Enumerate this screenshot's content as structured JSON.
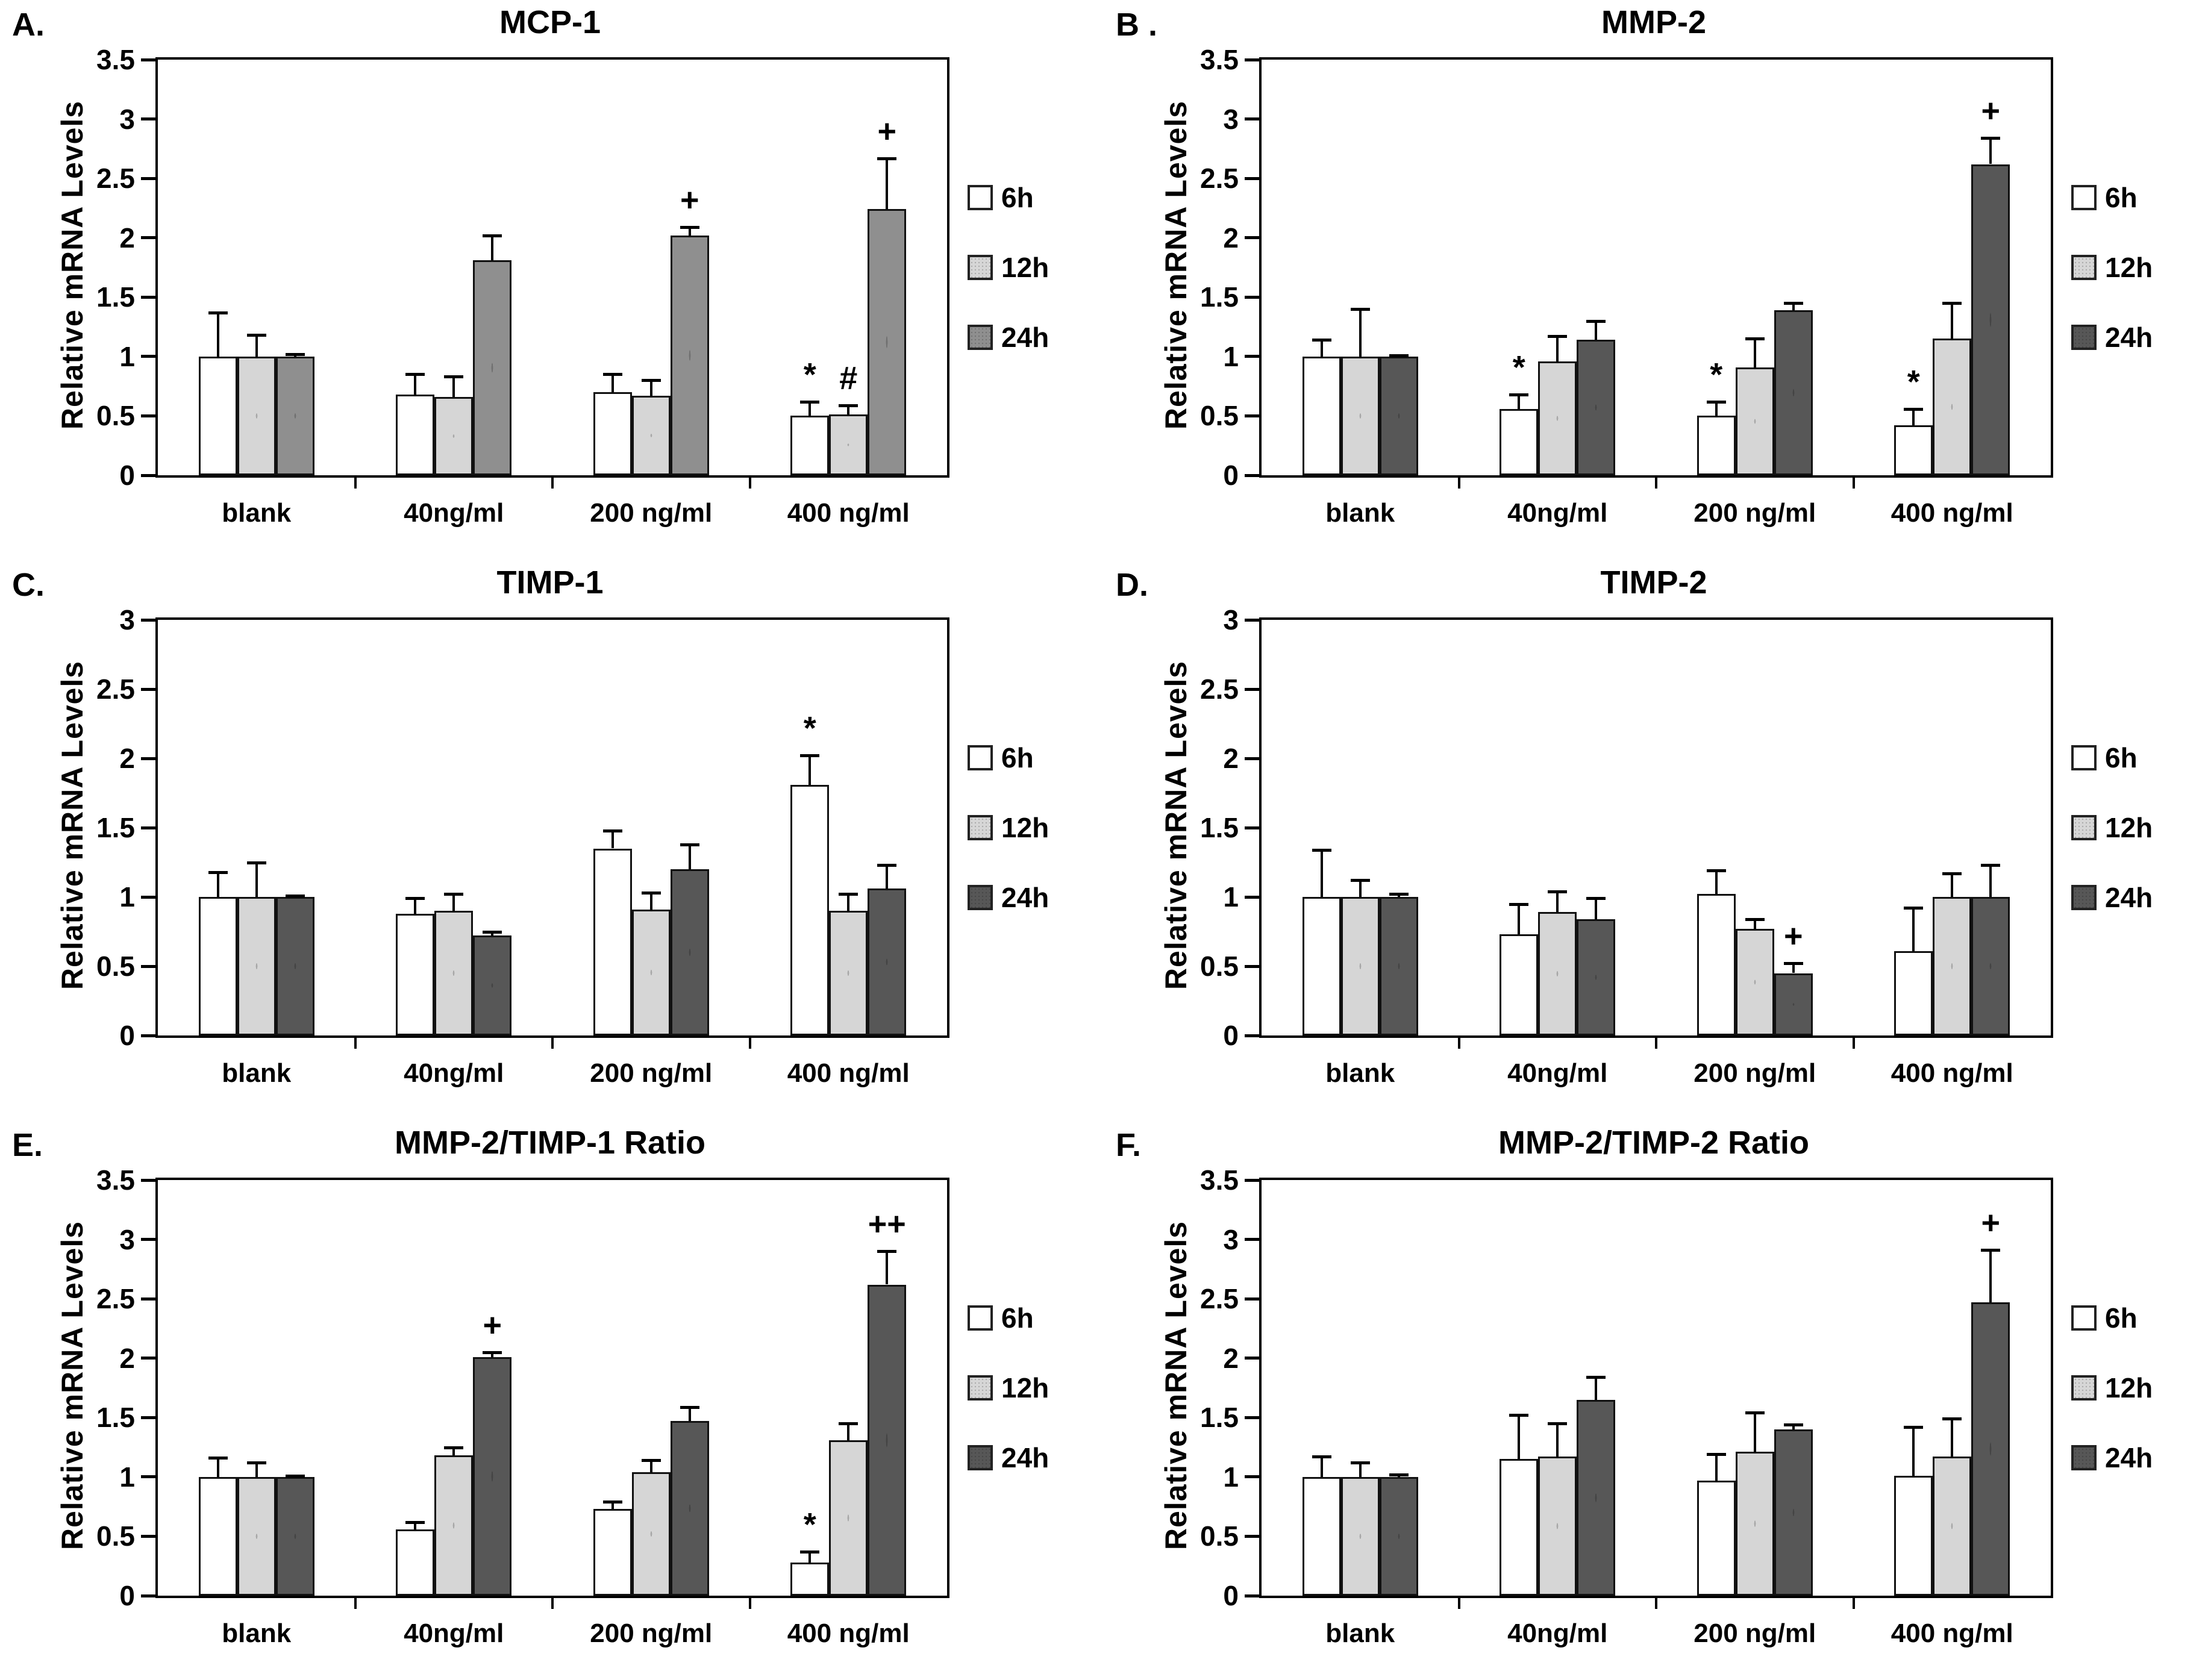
{
  "figure": {
    "ylabel": "Relative mRNA Levels",
    "legend_labels": [
      "6h",
      "12h",
      "24h"
    ],
    "categories": [
      "blank",
      "40ng/ml",
      "200 ng/ml",
      "400 ng/ml"
    ],
    "colors": {
      "bar_6h": "#ffffff",
      "bar_12h": "#d6d6d6",
      "bar_24h_panelA": "#8f8f8f",
      "bar_24h_default": "#575757",
      "axis": "#000000"
    }
  },
  "chart_data": [
    {
      "type": "bar",
      "panel_label": "A.",
      "title": "MCP-1",
      "ylabel": "Relative mRNA Levels",
      "ylim": [
        0,
        3.5
      ],
      "ytick_step": 0.5,
      "grid": false,
      "legend_position": "right",
      "categories": [
        "blank",
        "40ng/ml",
        "200 ng/ml",
        "400 ng/ml"
      ],
      "series_colors": [
        "#ffffff",
        "#d6d6d6",
        "#8f8f8f"
      ],
      "series": [
        {
          "name": "6h",
          "values": [
            1.0,
            0.68,
            0.7,
            0.5
          ],
          "errors": [
            0.37,
            0.17,
            0.15,
            0.12
          ],
          "markers": [
            "",
            "",
            "",
            "*"
          ]
        },
        {
          "name": "12h",
          "values": [
            1.0,
            0.66,
            0.67,
            0.51
          ],
          "errors": [
            0.18,
            0.17,
            0.13,
            0.08
          ],
          "markers": [
            "",
            "",
            "",
            "#"
          ]
        },
        {
          "name": "24h",
          "values": [
            1.0,
            1.81,
            2.02,
            2.24
          ],
          "errors": [
            0.02,
            0.21,
            0.07,
            0.43
          ],
          "markers": [
            "",
            "",
            "+",
            "+"
          ]
        }
      ]
    },
    {
      "type": "bar",
      "panel_label": "B .",
      "title": "MMP-2",
      "ylabel": "Relative mRNA Levels",
      "ylim": [
        0,
        3.5
      ],
      "ytick_step": 0.5,
      "grid": false,
      "legend_position": "right",
      "categories": [
        "blank",
        "40ng/ml",
        "200 ng/ml",
        "400 ng/ml"
      ],
      "series_colors": [
        "#ffffff",
        "#d6d6d6",
        "#575757"
      ],
      "series": [
        {
          "name": "6h",
          "values": [
            1.0,
            0.56,
            0.5,
            0.42
          ],
          "errors": [
            0.14,
            0.12,
            0.12,
            0.14
          ],
          "markers": [
            "",
            "*",
            "*",
            "*"
          ]
        },
        {
          "name": "12h",
          "values": [
            1.0,
            0.96,
            0.91,
            1.15
          ],
          "errors": [
            0.4,
            0.21,
            0.24,
            0.3
          ],
          "markers": [
            "",
            "",
            "",
            ""
          ]
        },
        {
          "name": "24h",
          "values": [
            1.0,
            1.14,
            1.39,
            2.62
          ],
          "errors": [
            0.01,
            0.16,
            0.06,
            0.22
          ],
          "markers": [
            "",
            "",
            "",
            "+"
          ]
        }
      ]
    },
    {
      "type": "bar",
      "panel_label": "C.",
      "title": "TIMP-1",
      "ylabel": "Relative mRNA Levels",
      "ylim": [
        0,
        3.0
      ],
      "ytick_step": 0.5,
      "grid": false,
      "legend_position": "right",
      "categories": [
        "blank",
        "40ng/ml",
        "200 ng/ml",
        "400 ng/ml"
      ],
      "series_colors": [
        "#ffffff",
        "#d6d6d6",
        "#575757"
      ],
      "series": [
        {
          "name": "6h",
          "values": [
            1.0,
            0.88,
            1.35,
            1.81
          ],
          "errors": [
            0.18,
            0.11,
            0.13,
            0.21
          ],
          "markers": [
            "",
            "",
            "",
            "*"
          ]
        },
        {
          "name": "12h",
          "values": [
            1.0,
            0.9,
            0.91,
            0.9
          ],
          "errors": [
            0.25,
            0.12,
            0.12,
            0.12
          ],
          "markers": [
            "",
            "",
            "",
            ""
          ]
        },
        {
          "name": "24h",
          "values": [
            1.0,
            0.72,
            1.2,
            1.06
          ],
          "errors": [
            0.01,
            0.03,
            0.18,
            0.17
          ],
          "markers": [
            "",
            "",
            "",
            ""
          ]
        }
      ]
    },
    {
      "type": "bar",
      "panel_label": "D.",
      "title": "TIMP-2",
      "ylabel": "Relative mRNA Levels",
      "ylim": [
        0,
        3.0
      ],
      "ytick_step": 0.5,
      "grid": false,
      "legend_position": "right",
      "categories": [
        "blank",
        "40ng/ml",
        "200 ng/ml",
        "400 ng/ml"
      ],
      "series_colors": [
        "#ffffff",
        "#d6d6d6",
        "#575757"
      ],
      "series": [
        {
          "name": "6h",
          "values": [
            1.0,
            0.73,
            1.02,
            0.61
          ],
          "errors": [
            0.34,
            0.22,
            0.17,
            0.31
          ],
          "markers": [
            "",
            "",
            "",
            ""
          ]
        },
        {
          "name": "12h",
          "values": [
            1.0,
            0.89,
            0.77,
            1.0
          ],
          "errors": [
            0.12,
            0.15,
            0.07,
            0.17
          ],
          "markers": [
            "",
            "",
            "",
            ""
          ]
        },
        {
          "name": "24h",
          "values": [
            1.0,
            0.84,
            0.45,
            1.0
          ],
          "errors": [
            0.02,
            0.15,
            0.07,
            0.23
          ],
          "markers": [
            "",
            "",
            "+",
            ""
          ]
        }
      ]
    },
    {
      "type": "bar",
      "panel_label": "E.",
      "title": "MMP-2/TIMP-1 Ratio",
      "ylabel": "Relative mRNA Levels",
      "ylim": [
        0,
        3.5
      ],
      "ytick_step": 0.5,
      "grid": false,
      "legend_position": "right",
      "categories": [
        "blank",
        "40ng/ml",
        "200 ng/ml",
        "400 ng/ml"
      ],
      "series_colors": [
        "#ffffff",
        "#d6d6d6",
        "#575757"
      ],
      "series": [
        {
          "name": "6h",
          "values": [
            1.0,
            0.56,
            0.73,
            0.28
          ],
          "errors": [
            0.16,
            0.06,
            0.06,
            0.09
          ],
          "markers": [
            "",
            "",
            "",
            "*"
          ]
        },
        {
          "name": "12h",
          "values": [
            1.0,
            1.18,
            1.04,
            1.31
          ],
          "errors": [
            0.12,
            0.07,
            0.1,
            0.14
          ],
          "markers": [
            "",
            "",
            "",
            ""
          ]
        },
        {
          "name": "24h",
          "values": [
            1.0,
            2.01,
            1.47,
            2.62
          ],
          "errors": [
            0.01,
            0.04,
            0.12,
            0.28
          ],
          "markers": [
            "",
            "+",
            "",
            "++"
          ]
        }
      ]
    },
    {
      "type": "bar",
      "panel_label": "F.",
      "title": "MMP-2/TIMP-2 Ratio",
      "ylabel": "Relative mRNA Levels",
      "ylim": [
        0,
        3.5
      ],
      "ytick_step": 0.5,
      "grid": false,
      "legend_position": "right",
      "categories": [
        "blank",
        "40ng/ml",
        "200 ng/ml",
        "400 ng/ml"
      ],
      "series_colors": [
        "#ffffff",
        "#d6d6d6",
        "#575757"
      ],
      "series": [
        {
          "name": "6h",
          "values": [
            1.0,
            1.15,
            0.97,
            1.01
          ],
          "errors": [
            0.17,
            0.37,
            0.22,
            0.41
          ],
          "markers": [
            "",
            "",
            "",
            ""
          ]
        },
        {
          "name": "12h",
          "values": [
            1.0,
            1.17,
            1.21,
            1.17
          ],
          "errors": [
            0.12,
            0.28,
            0.33,
            0.32
          ],
          "markers": [
            "",
            "",
            "",
            ""
          ]
        },
        {
          "name": "24h",
          "values": [
            1.0,
            1.65,
            1.4,
            2.47
          ],
          "errors": [
            0.02,
            0.19,
            0.04,
            0.44
          ],
          "markers": [
            "",
            "",
            "",
            "+"
          ]
        }
      ]
    }
  ]
}
